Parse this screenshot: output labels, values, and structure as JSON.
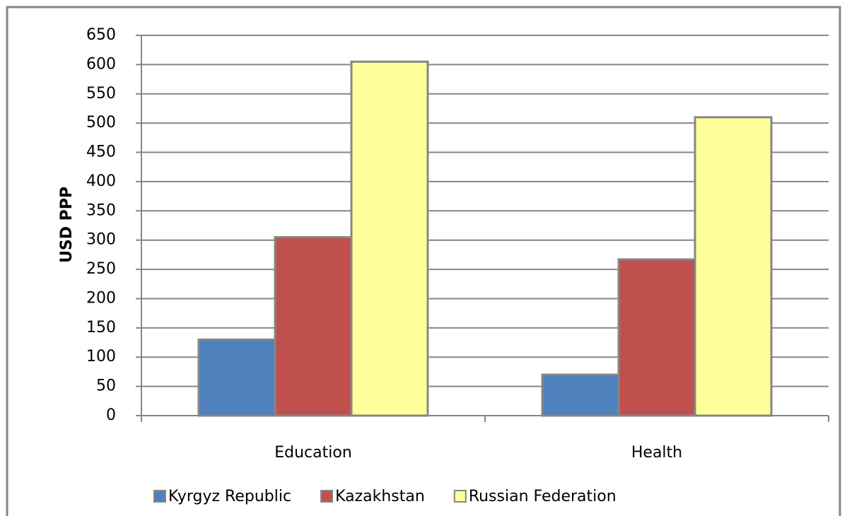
{
  "chart_data": {
    "type": "bar",
    "y_label": "USD PPP",
    "categories": [
      "Education",
      "Health"
    ],
    "series": [
      {
        "name": "Kyrgyz Republic",
        "color": "#4f81bd",
        "values": [
          130,
          70
        ]
      },
      {
        "name": "Kazakhstan",
        "color": "#c0504d",
        "values": [
          305,
          267
        ]
      },
      {
        "name": "Russian Federation",
        "color": "#ffff99",
        "values": [
          605,
          510
        ]
      }
    ],
    "ylim": [
      0,
      650
    ],
    "yticks": [
      0,
      50,
      100,
      150,
      200,
      250,
      300,
      350,
      400,
      450,
      500,
      550,
      600,
      650
    ],
    "grid": true
  }
}
